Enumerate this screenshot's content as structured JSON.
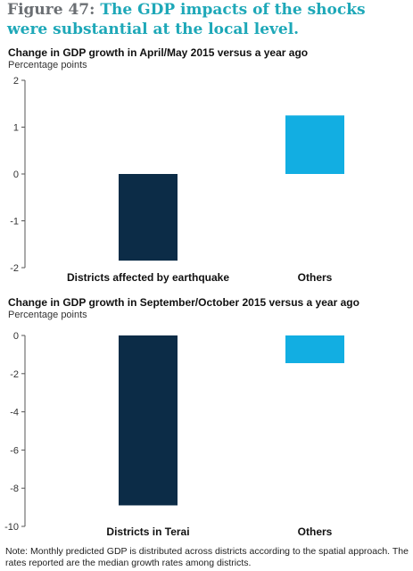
{
  "figure": {
    "label": "Figure 47:",
    "headline": "The GDP impacts of the shocks were substantial at the local level."
  },
  "note": "Note: Monthly predicted GDP is distributed across districts according to the spatial approach. The rates reported are the median growth rates among districts.",
  "colors": {
    "dark": "#0c2c47",
    "light": "#12aee2",
    "axis": "#555555",
    "grid": "#d9d9d9"
  },
  "chart_data": [
    {
      "type": "bar",
      "title": "Change in GDP growth in April/May 2015 versus a year ago",
      "ylabel": "Percentage points",
      "xlabel": "",
      "categories": [
        "Districts affected by earthquake",
        "Others"
      ],
      "values": [
        -1.85,
        1.25
      ],
      "bar_colors": [
        "#0c2c47",
        "#12aee2"
      ],
      "ylim": [
        -2,
        2
      ],
      "yticks": [
        2,
        1,
        0,
        -1,
        -2
      ],
      "grid": false
    },
    {
      "type": "bar",
      "title": "Change in GDP growth in September/October 2015 versus a year ago",
      "ylabel": "Percentage points",
      "xlabel": "",
      "categories": [
        "Districts in Terai",
        "Others"
      ],
      "values": [
        -8.9,
        -1.45
      ],
      "bar_colors": [
        "#0c2c47",
        "#12aee2"
      ],
      "ylim": [
        -10,
        0
      ],
      "yticks": [
        0,
        -2,
        -4,
        -6,
        -8,
        -10
      ],
      "grid": false
    }
  ]
}
